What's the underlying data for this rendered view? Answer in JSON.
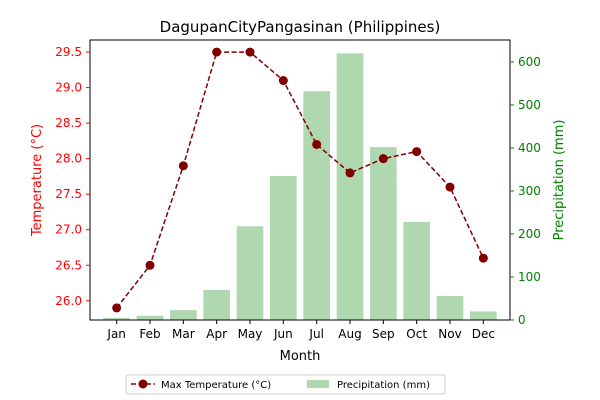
{
  "colors": {
    "temperature": "#800000",
    "temperature_axis": "#ff0000",
    "precipitation": "#b0d8b0",
    "precipitation_axis": "#008000"
  },
  "chart_data": {
    "type": "bar",
    "title": "DagupanCityPangasinan (Philippines)",
    "xlabel": "Month",
    "ylabel_left": "Temperature (°C)",
    "ylabel_right": "Precipitation (mm)",
    "categories": [
      "Jan",
      "Feb",
      "Mar",
      "Apr",
      "May",
      "Jun",
      "Jul",
      "Aug",
      "Sep",
      "Oct",
      "Nov",
      "Dec"
    ],
    "series": [
      {
        "name": "Max Temperature (°C)",
        "type": "line",
        "axis": "left",
        "values": [
          25.9,
          26.5,
          27.9,
          29.5,
          29.5,
          29.1,
          28.2,
          27.8,
          28.0,
          28.1,
          27.6,
          26.6
        ]
      },
      {
        "name": "Precipitation (mm)",
        "type": "bar",
        "axis": "right",
        "values": [
          5,
          10,
          23,
          70,
          218,
          335,
          532,
          620,
          402,
          228,
          56,
          20
        ]
      }
    ],
    "ylim_left": [
      25.73,
      29.67
    ],
    "ylim_right": [
      0,
      651
    ],
    "yticks_left": [
      "26.0",
      "26.5",
      "27.0",
      "27.5",
      "28.0",
      "28.5",
      "29.0",
      "29.5"
    ],
    "yticks_right": [
      "0",
      "100",
      "200",
      "300",
      "400",
      "500",
      "600"
    ],
    "grid": false,
    "legend_position": "bottom-center"
  }
}
